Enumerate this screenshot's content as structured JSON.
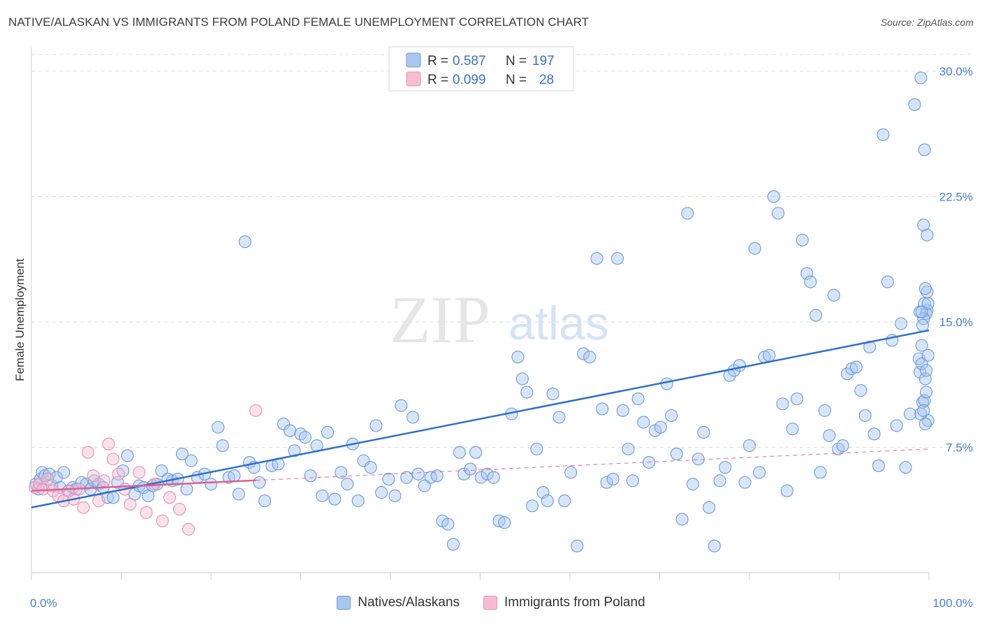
{
  "header": {
    "title": "NATIVE/ALASKAN VS IMMIGRANTS FROM POLAND FEMALE UNEMPLOYMENT CORRELATION CHART",
    "source": "Source: ZipAtlas.com"
  },
  "watermark": {
    "zip": "ZIP",
    "atlas": "atlas"
  },
  "legend": {
    "series": [
      {
        "r_label": "R =",
        "r_value": "0.587",
        "n_label": "N =",
        "n_value": "197"
      },
      {
        "r_label": "R =",
        "r_value": "0.099",
        "n_label": "N =",
        "n_value": "28"
      }
    ]
  },
  "bottom_legend": {
    "native": "Natives/Alaskans",
    "poland": "Immigrants from Poland"
  },
  "colors": {
    "native_fill": "#a9c6ee",
    "native_stroke": "#6a9bdb",
    "native_line": "#2e6fcf",
    "poland_fill": "#f7bcd0",
    "poland_stroke": "#e98fb0",
    "poland_line": "#e0608f",
    "axis_label": "#4a7fd1",
    "grid": "#dddddd"
  },
  "chart_data": {
    "type": "scatter",
    "title": "NATIVE/ALASKAN VS IMMIGRANTS FROM POLAND FEMALE UNEMPLOYMENT CORRELATION CHART",
    "xlabel": "",
    "ylabel": "Female Unemployment",
    "xlim": [
      0,
      100
    ],
    "ylim": [
      0,
      31
    ],
    "x_tick_labels": [
      "0.0%",
      "100.0%"
    ],
    "y_ticks": [
      7.5,
      15.0,
      22.5,
      30.0
    ],
    "y_tick_labels": [
      "7.5%",
      "15.0%",
      "22.5%",
      "30.0%"
    ],
    "grid": true,
    "series": [
      {
        "name": "Natives/Alaskans",
        "R": 0.587,
        "N": 197,
        "trend": {
          "x": [
            0,
            100
          ],
          "y": [
            3.9,
            14.5
          ],
          "solid_until": 100
        },
        "points": [
          [
            0.5,
            5.3
          ],
          [
            0.8,
            5.0
          ],
          [
            1.0,
            5.6
          ],
          [
            1.2,
            6.0
          ],
          [
            1.5,
            5.8
          ],
          [
            2.0,
            5.9
          ],
          [
            2.3,
            5.2
          ],
          [
            2.8,
            5.7
          ],
          [
            3.2,
            5.1
          ],
          [
            3.6,
            6.0
          ],
          [
            4.2,
            4.9
          ],
          [
            4.6,
            5.1
          ],
          [
            5.0,
            5.0
          ],
          [
            5.6,
            5.4
          ],
          [
            6.1,
            5.3
          ],
          [
            6.6,
            5.0
          ],
          [
            7.0,
            5.5
          ],
          [
            7.5,
            5.3
          ],
          [
            8.0,
            5.1
          ],
          [
            8.5,
            4.5
          ],
          [
            9.1,
            4.5
          ],
          [
            9.6,
            5.4
          ],
          [
            10.2,
            6.1
          ],
          [
            10.7,
            7.0
          ],
          [
            11.5,
            4.7
          ],
          [
            12.0,
            5.2
          ],
          [
            12.5,
            5.1
          ],
          [
            13.0,
            4.6
          ],
          [
            13.5,
            5.2
          ],
          [
            14.0,
            5.3
          ],
          [
            14.5,
            6.1
          ],
          [
            15.2,
            5.6
          ],
          [
            15.7,
            5.5
          ],
          [
            16.3,
            5.6
          ],
          [
            16.8,
            7.1
          ],
          [
            17.3,
            5.0
          ],
          [
            17.8,
            6.7
          ],
          [
            18.5,
            5.7
          ],
          [
            19.3,
            5.9
          ],
          [
            20.0,
            5.3
          ],
          [
            20.8,
            8.7
          ],
          [
            21.3,
            7.6
          ],
          [
            22.0,
            5.7
          ],
          [
            22.6,
            5.8
          ],
          [
            23.1,
            4.7
          ],
          [
            23.8,
            19.8
          ],
          [
            24.3,
            6.6
          ],
          [
            24.8,
            6.3
          ],
          [
            25.4,
            5.4
          ],
          [
            26.0,
            4.3
          ],
          [
            26.8,
            6.4
          ],
          [
            27.5,
            6.5
          ],
          [
            28.1,
            8.9
          ],
          [
            28.8,
            8.5
          ],
          [
            29.3,
            7.3
          ],
          [
            30.0,
            8.3
          ],
          [
            30.5,
            8.1
          ],
          [
            31.1,
            5.8
          ],
          [
            31.8,
            7.6
          ],
          [
            32.4,
            4.6
          ],
          [
            33.0,
            8.4
          ],
          [
            33.8,
            4.4
          ],
          [
            34.5,
            6.0
          ],
          [
            35.2,
            5.3
          ],
          [
            35.8,
            7.7
          ],
          [
            36.4,
            4.3
          ],
          [
            37.0,
            6.7
          ],
          [
            37.8,
            6.3
          ],
          [
            38.4,
            8.8
          ],
          [
            39.0,
            4.8
          ],
          [
            39.8,
            5.6
          ],
          [
            40.5,
            4.6
          ],
          [
            41.2,
            10.0
          ],
          [
            41.8,
            5.7
          ],
          [
            42.5,
            9.3
          ],
          [
            43.1,
            5.9
          ],
          [
            43.8,
            5.2
          ],
          [
            44.5,
            5.7
          ],
          [
            45.2,
            5.8
          ],
          [
            45.8,
            3.1
          ],
          [
            46.4,
            2.9
          ],
          [
            47.0,
            1.7
          ],
          [
            47.7,
            7.2
          ],
          [
            48.2,
            5.9
          ],
          [
            48.9,
            6.2
          ],
          [
            49.5,
            7.2
          ],
          [
            50.1,
            5.7
          ],
          [
            50.8,
            5.9
          ],
          [
            51.5,
            5.7
          ],
          [
            52.1,
            3.1
          ],
          [
            52.7,
            3.0
          ],
          [
            53.5,
            9.5
          ],
          [
            54.2,
            12.9
          ],
          [
            54.7,
            11.6
          ],
          [
            55.2,
            10.8
          ],
          [
            55.8,
            4.0
          ],
          [
            56.3,
            7.4
          ],
          [
            57.0,
            4.8
          ],
          [
            57.5,
            4.3
          ],
          [
            58.1,
            10.7
          ],
          [
            58.8,
            9.3
          ],
          [
            59.4,
            4.3
          ],
          [
            60.1,
            6.0
          ],
          [
            60.8,
            1.6
          ],
          [
            61.5,
            13.1
          ],
          [
            62.2,
            12.9
          ],
          [
            63.0,
            18.8
          ],
          [
            63.6,
            9.8
          ],
          [
            64.1,
            5.4
          ],
          [
            64.8,
            5.6
          ],
          [
            65.3,
            18.8
          ],
          [
            65.9,
            9.7
          ],
          [
            66.5,
            7.4
          ],
          [
            67.0,
            5.5
          ],
          [
            67.6,
            10.4
          ],
          [
            68.2,
            9.0
          ],
          [
            68.8,
            6.6
          ],
          [
            69.5,
            8.5
          ],
          [
            70.1,
            8.7
          ],
          [
            70.8,
            11.3
          ],
          [
            71.3,
            9.4
          ],
          [
            71.9,
            7.1
          ],
          [
            72.5,
            3.2
          ],
          [
            73.1,
            21.5
          ],
          [
            73.7,
            5.3
          ],
          [
            74.3,
            6.8
          ],
          [
            74.9,
            8.4
          ],
          [
            75.5,
            3.9
          ],
          [
            76.1,
            1.6
          ],
          [
            76.7,
            5.5
          ],
          [
            77.3,
            6.3
          ],
          [
            77.8,
            11.8
          ],
          [
            78.3,
            12.1
          ],
          [
            78.9,
            12.4
          ],
          [
            79.5,
            5.4
          ],
          [
            80.0,
            7.6
          ],
          [
            80.6,
            19.4
          ],
          [
            81.1,
            6.0
          ],
          [
            81.7,
            12.9
          ],
          [
            82.2,
            13.0
          ],
          [
            82.7,
            22.5
          ],
          [
            83.2,
            21.5
          ],
          [
            83.7,
            10.1
          ],
          [
            84.2,
            4.9
          ],
          [
            84.8,
            8.6
          ],
          [
            85.3,
            10.4
          ],
          [
            85.9,
            19.9
          ],
          [
            86.4,
            17.9
          ],
          [
            86.8,
            17.4
          ],
          [
            87.4,
            15.4
          ],
          [
            87.9,
            6.0
          ],
          [
            88.4,
            9.7
          ],
          [
            88.9,
            8.2
          ],
          [
            89.4,
            16.6
          ],
          [
            89.9,
            7.4
          ],
          [
            90.4,
            7.6
          ],
          [
            90.9,
            11.9
          ],
          [
            91.4,
            12.2
          ],
          [
            91.9,
            12.3
          ],
          [
            92.4,
            10.9
          ],
          [
            92.9,
            9.4
          ],
          [
            93.4,
            13.5
          ],
          [
            93.9,
            8.3
          ],
          [
            94.4,
            6.4
          ],
          [
            94.9,
            26.2
          ],
          [
            95.4,
            17.4
          ],
          [
            95.9,
            13.9
          ],
          [
            96.4,
            8.8
          ],
          [
            96.9,
            14.9
          ],
          [
            97.4,
            6.3
          ],
          [
            97.9,
            9.5
          ],
          [
            98.4,
            28.0
          ],
          [
            98.9,
            12.8
          ],
          [
            99.4,
            20.8
          ],
          [
            99.0,
            12.0
          ],
          [
            99.6,
            11.6
          ],
          [
            99.2,
            13.6
          ],
          [
            99.8,
            15.7
          ],
          [
            99.5,
            16.1
          ],
          [
            99.7,
            15.5
          ],
          [
            99.3,
            10.2
          ],
          [
            99.9,
            9.1
          ],
          [
            99.1,
            9.5
          ],
          [
            99.6,
            8.9
          ],
          [
            99.8,
            20.2
          ],
          [
            99.4,
            15.2
          ],
          [
            99.2,
            12.5
          ],
          [
            99.9,
            13.0
          ],
          [
            99.5,
            10.3
          ],
          [
            99.7,
            12.1
          ],
          [
            99.0,
            15.6
          ],
          [
            99.3,
            14.8
          ],
          [
            99.8,
            16.8
          ],
          [
            99.6,
            17.0
          ],
          [
            99.4,
            9.7
          ],
          [
            99.9,
            16.1
          ],
          [
            99.5,
            25.3
          ],
          [
            99.7,
            10.8
          ],
          [
            99.2,
            15.6
          ],
          [
            99.1,
            29.6
          ]
        ]
      },
      {
        "name": "Immigrants from Poland",
        "R": 0.099,
        "N": 28,
        "trend": {
          "x": [
            0,
            100
          ],
          "y": [
            4.9,
            7.4
          ],
          "solid_until": 25
        },
        "points": [
          [
            0.4,
            5.1
          ],
          [
            0.9,
            5.3
          ],
          [
            1.3,
            5.0
          ],
          [
            1.8,
            5.6
          ],
          [
            2.4,
            4.9
          ],
          [
            3.0,
            4.6
          ],
          [
            3.6,
            4.3
          ],
          [
            4.1,
            4.9
          ],
          [
            4.7,
            4.4
          ],
          [
            5.3,
            5.0
          ],
          [
            5.8,
            3.9
          ],
          [
            6.3,
            7.2
          ],
          [
            6.9,
            5.8
          ],
          [
            7.5,
            4.3
          ],
          [
            8.1,
            5.5
          ],
          [
            8.6,
            7.7
          ],
          [
            9.1,
            6.8
          ],
          [
            9.7,
            5.9
          ],
          [
            10.4,
            5.0
          ],
          [
            11.0,
            4.1
          ],
          [
            12.0,
            6.0
          ],
          [
            12.8,
            3.6
          ],
          [
            13.7,
            5.3
          ],
          [
            14.6,
            3.1
          ],
          [
            15.4,
            4.5
          ],
          [
            16.5,
            3.8
          ],
          [
            17.5,
            2.6
          ],
          [
            25.0,
            9.7
          ]
        ]
      }
    ]
  }
}
